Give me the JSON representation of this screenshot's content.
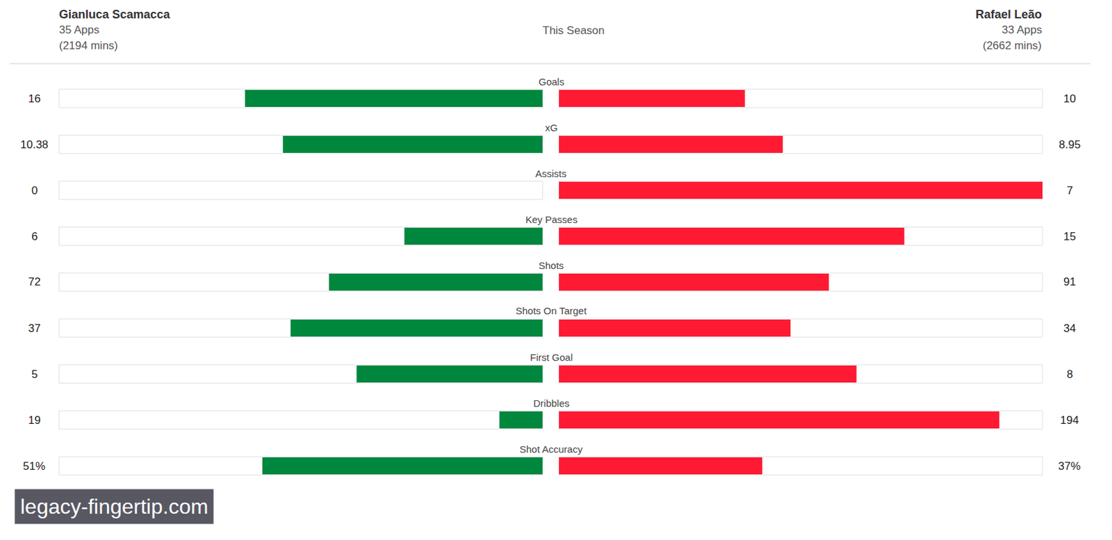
{
  "chart_data": {
    "type": "bar",
    "orientation": "horizontal",
    "title": "This Season",
    "tick_labels": false,
    "data_labels": true,
    "categories": [
      "Goals",
      "xG",
      "Assists",
      "Key Passes",
      "Shots",
      "Shots On Target",
      "First Goal",
      "Dribbles",
      "Shot Accuracy"
    ],
    "series": [
      {
        "name": "Gianluca Scamacca",
        "apps": "35 Apps",
        "minutes": "(2194 mins)",
        "color": "#00873e",
        "values": [
          16,
          10.38,
          0,
          6,
          72,
          37,
          5,
          19,
          51
        ],
        "value_labels": [
          "16",
          "10.38",
          "0",
          "6",
          "72",
          "37",
          "5",
          "19",
          "51%"
        ]
      },
      {
        "name": "Rafael Leão",
        "apps": "33 Apps",
        "minutes": "(2662 mins)",
        "color": "#ff1a33",
        "values": [
          10,
          8.95,
          7,
          15,
          91,
          34,
          8,
          194,
          37
        ],
        "value_labels": [
          "10",
          "8.95",
          "7",
          "15",
          "91",
          "34",
          "8",
          "194",
          "37%"
        ]
      }
    ],
    "annotations": [
      "legacy-fingertip.com"
    ]
  }
}
